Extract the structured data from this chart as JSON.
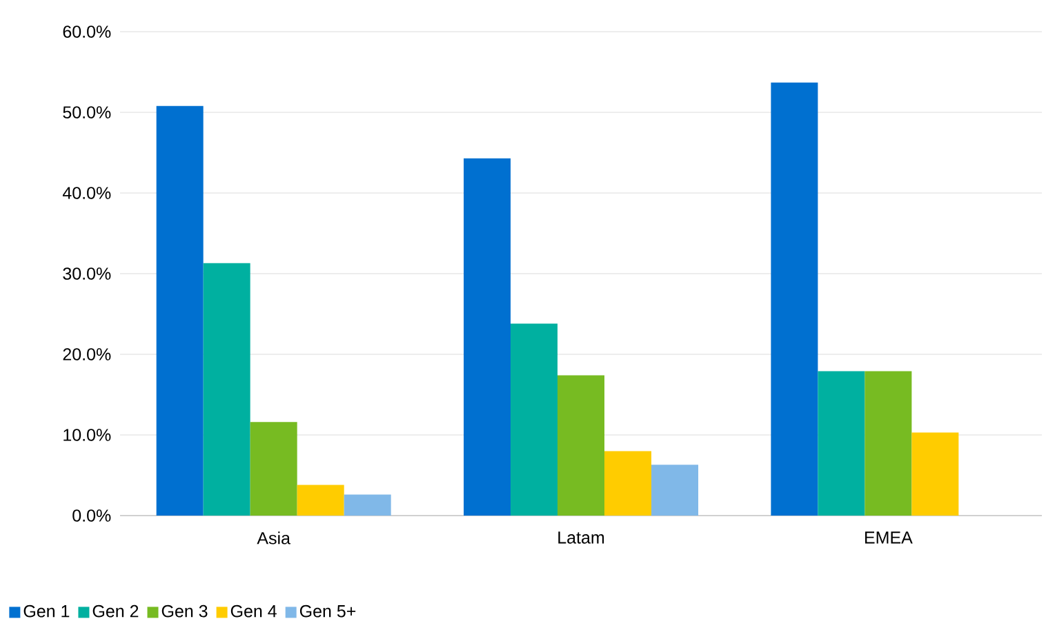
{
  "chart_data": {
    "type": "bar",
    "categories": [
      "Asia",
      "Latam",
      "EMEA"
    ],
    "series": [
      {
        "name": "Gen 1",
        "color": "#0070d0",
        "values": [
          50.8,
          44.3,
          53.7
        ]
      },
      {
        "name": "Gen 2",
        "color": "#00b0a0",
        "values": [
          31.3,
          23.8,
          17.9
        ]
      },
      {
        "name": "Gen 3",
        "color": "#77bb22",
        "values": [
          11.6,
          17.4,
          17.9
        ]
      },
      {
        "name": "Gen 4",
        "color": "#ffcc00",
        "values": [
          3.8,
          8.0,
          10.3
        ]
      },
      {
        "name": "Gen 5+",
        "color": "#80b8e8",
        "values": [
          2.6,
          6.3,
          null
        ]
      }
    ],
    "ylim": [
      0,
      60
    ],
    "yticks": [
      {
        "value": 0,
        "label": "0.0%"
      },
      {
        "value": 10,
        "label": "10.0%"
      },
      {
        "value": 20,
        "label": "20.0%"
      },
      {
        "value": 30,
        "label": "30.0%"
      },
      {
        "value": 40,
        "label": "40.0%"
      },
      {
        "value": 50,
        "label": "50.0%"
      },
      {
        "value": 60,
        "label": "60.0%"
      }
    ],
    "grid": "y",
    "legend": "bottom left"
  }
}
